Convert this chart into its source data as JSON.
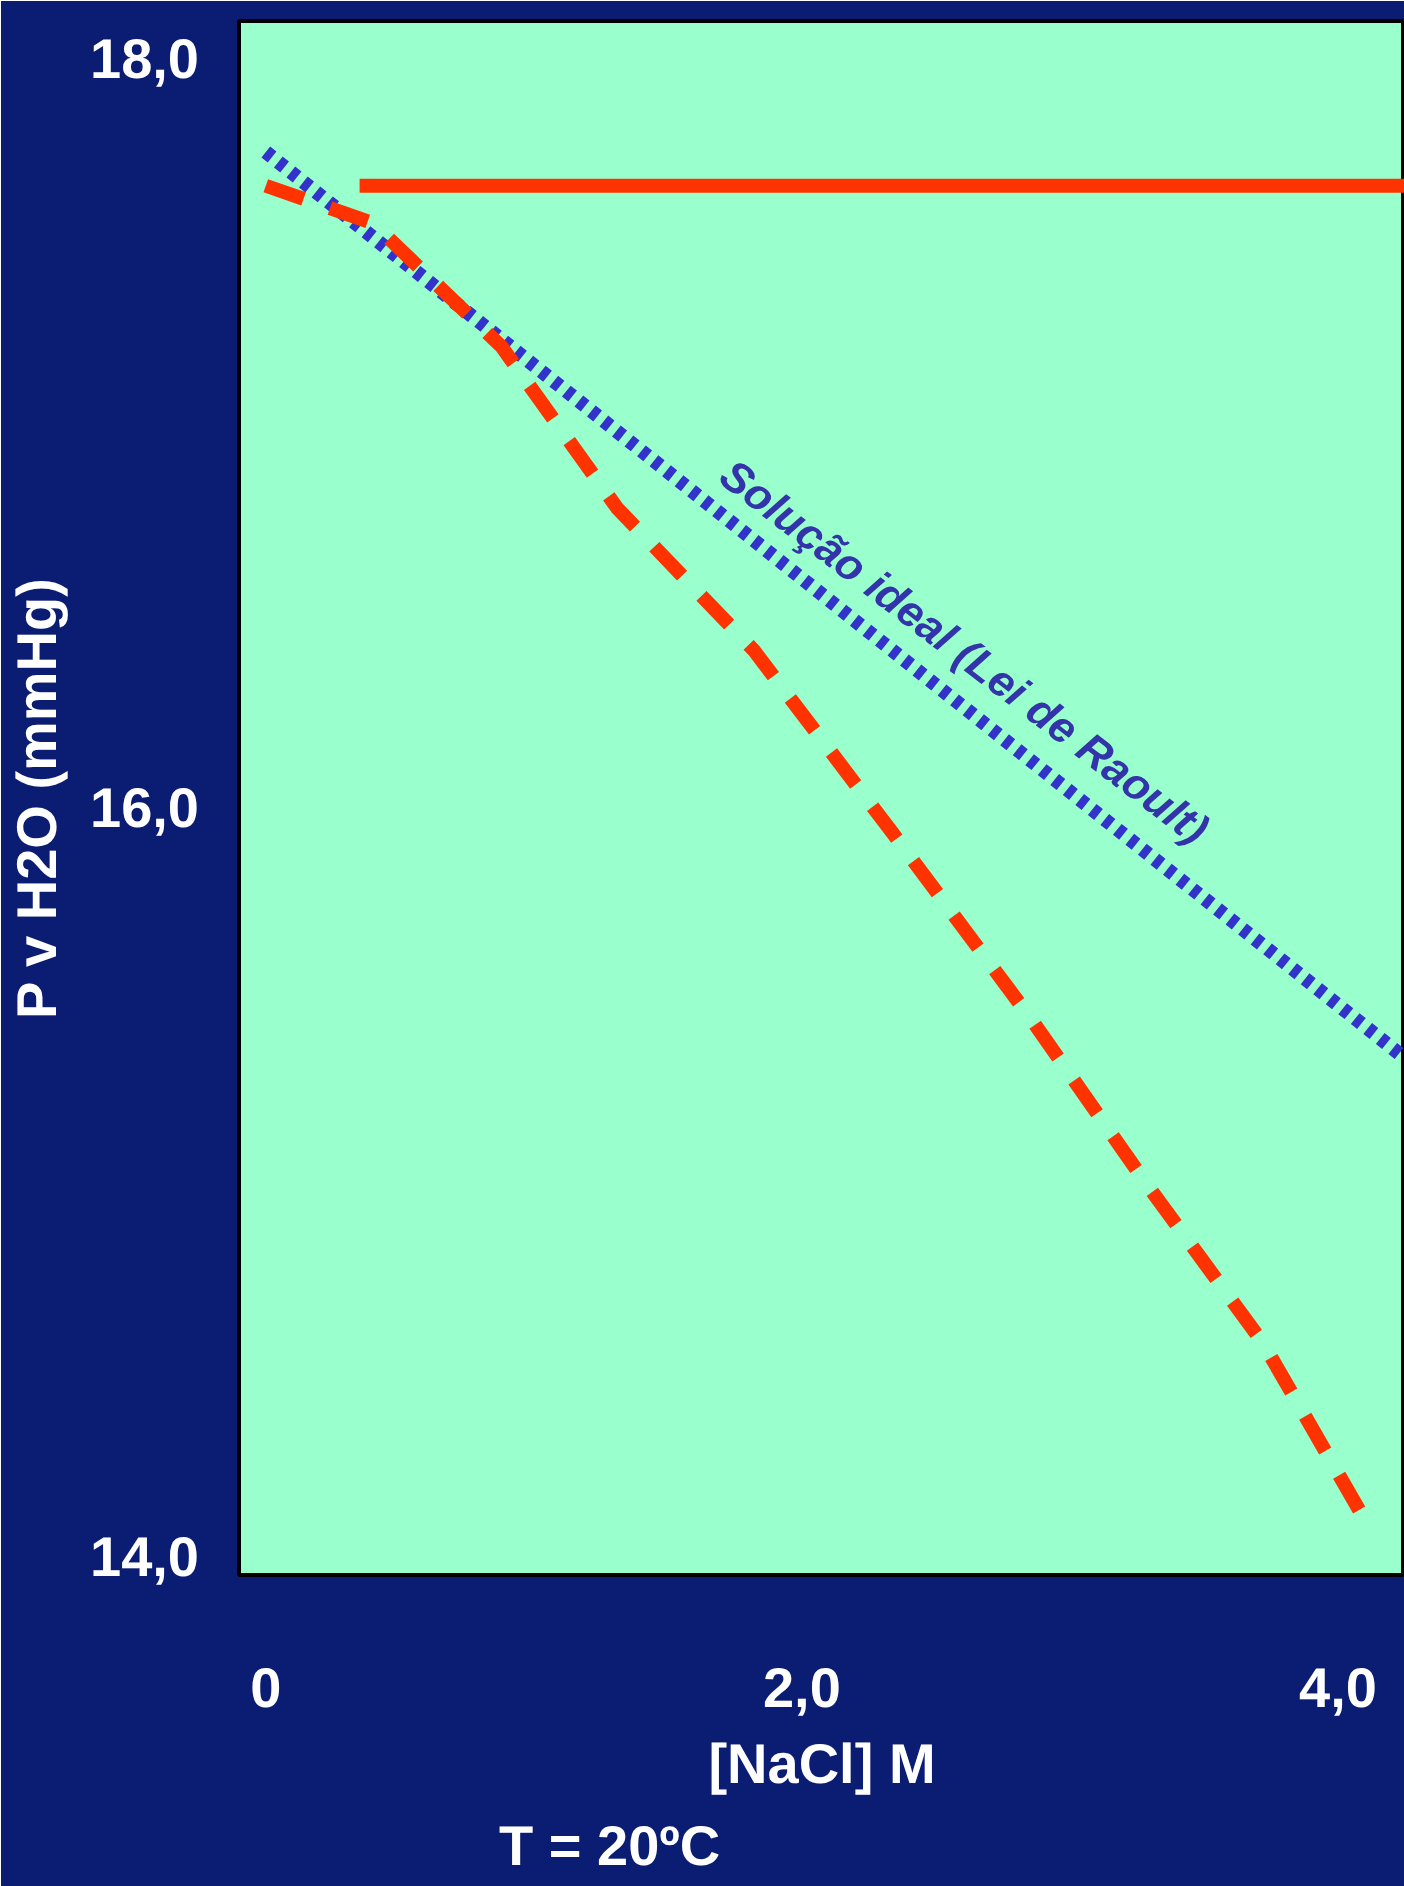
{
  "chart_data": {
    "type": "line",
    "xlabel": "[NaCl] M",
    "ylabel": "P v H2O (mmHg)",
    "xlim": [
      -0.1,
      4.25
    ],
    "ylim": [
      13.95,
      18.1
    ],
    "xticks": [
      {
        "value": 0,
        "label": "0"
      },
      {
        "value": 2,
        "label": "2,0"
      },
      {
        "value": 4,
        "label": "4,0"
      }
    ],
    "yticks": [
      {
        "value": 14,
        "label": "14,0"
      },
      {
        "value": 16,
        "label": "16,0"
      },
      {
        "value": 18,
        "label": "18,0"
      }
    ],
    "grid": false,
    "marker": "none",
    "series": [
      {
        "color": "#ff3300",
        "line_style": "solid",
        "x": [
          0.35,
          4.25
        ],
        "values": [
          17.66,
          17.66
        ]
      },
      {
        "color": "#3333cc",
        "line_style": "dotted",
        "x": [
          0,
          4.25
        ],
        "values": [
          17.75,
          15.33
        ]
      },
      {
        "color": "#ff3300",
        "line_style": "dashed",
        "x": [
          0,
          0.4,
          0.88,
          1.31,
          1.82,
          2.34,
          2.85,
          3.28,
          3.72,
          4.09
        ],
        "values": [
          17.66,
          17.56,
          17.23,
          16.8,
          16.42,
          15.93,
          15.44,
          15.0,
          14.57,
          14.11
        ]
      }
    ],
    "annotations": [
      "Solução ideal (Lei de Raoult)",
      "T = 20ºC"
    ]
  }
}
